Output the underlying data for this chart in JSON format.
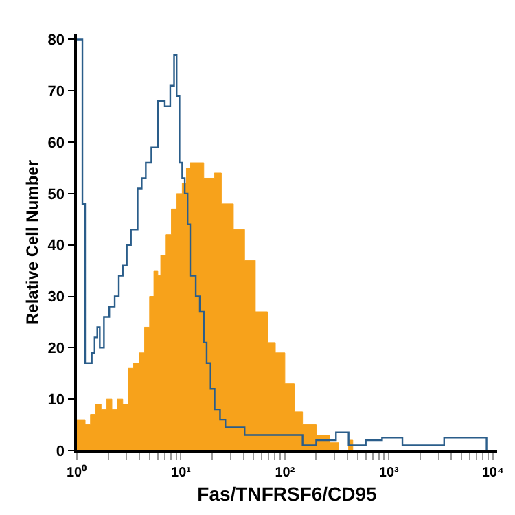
{
  "chart_data": {
    "type": "step",
    "xlabel": "Fas/TNFRSF6/CD95",
    "ylabel": "Relative Cell Number",
    "log": "x",
    "xlim": [
      1,
      11000
    ],
    "ylim": [
      0,
      81
    ],
    "xticks": [
      {
        "value": 1,
        "label": "10⁰"
      },
      {
        "value": 2,
        "label": null
      },
      {
        "value": 3,
        "label": null
      },
      {
        "value": 4,
        "label": null
      },
      {
        "value": 5,
        "label": null
      },
      {
        "value": 6,
        "label": null
      },
      {
        "value": 7,
        "label": null
      },
      {
        "value": 8,
        "label": null
      },
      {
        "value": 9,
        "label": null
      },
      {
        "value": 10,
        "label": "10¹"
      },
      {
        "value": 20,
        "label": null
      },
      {
        "value": 30,
        "label": null
      },
      {
        "value": 40,
        "label": null
      },
      {
        "value": 50,
        "label": null
      },
      {
        "value": 60,
        "label": null
      },
      {
        "value": 70,
        "label": null
      },
      {
        "value": 80,
        "label": null
      },
      {
        "value": 90,
        "label": null
      },
      {
        "value": 100,
        "label": "10²"
      },
      {
        "value": 200,
        "label": null
      },
      {
        "value": 300,
        "label": null
      },
      {
        "value": 400,
        "label": null
      },
      {
        "value": 500,
        "label": null
      },
      {
        "value": 600,
        "label": null
      },
      {
        "value": 700,
        "label": null
      },
      {
        "value": 800,
        "label": null
      },
      {
        "value": 900,
        "label": null
      },
      {
        "value": 1000,
        "label": "10³"
      },
      {
        "value": 2000,
        "label": null
      },
      {
        "value": 3000,
        "label": null
      },
      {
        "value": 4000,
        "label": null
      },
      {
        "value": 5000,
        "label": null
      },
      {
        "value": 6000,
        "label": null
      },
      {
        "value": 7000,
        "label": null
      },
      {
        "value": 8000,
        "label": null
      },
      {
        "value": 9000,
        "label": null
      },
      {
        "value": 10000,
        "label": "10⁴"
      }
    ],
    "yticks": [
      0,
      10,
      20,
      30,
      40,
      50,
      60,
      70,
      80
    ],
    "series": [
      {
        "type": "area",
        "color": "#f7a21b",
        "x": [
          1,
          1.2,
          1.35,
          1.52,
          1.71,
          1.93,
          2.17,
          2.45,
          2.76,
          3.11,
          3.51,
          3.96,
          4.46,
          5.0,
          5.5,
          6.0,
          6.4,
          7.2,
          8.1,
          9.1,
          10.3,
          11.3,
          12.3,
          16.6,
          21,
          24.5,
          32,
          41,
          52,
          68,
          81,
          100,
          123,
          148,
          200,
          270,
          330,
          410,
          450,
          490
        ],
        "values": [
          6,
          5,
          7,
          9,
          8,
          10,
          8,
          10,
          9,
          16,
          17,
          19,
          24,
          30,
          35,
          34,
          38,
          42,
          47,
          50,
          52,
          55,
          56,
          53,
          54,
          48,
          43,
          37,
          27,
          21,
          19,
          13,
          7.5,
          5,
          3,
          1.5,
          0,
          2,
          0,
          0
        ]
      },
      {
        "color": "#2a5d8a",
        "x": [
          1,
          1.13,
          1.2,
          1.39,
          1.48,
          1.57,
          1.66,
          1.82,
          2.05,
          2.31,
          2.53,
          2.76,
          3.02,
          3.31,
          3.84,
          4.2,
          4.6,
          5.2,
          6.0,
          7.0,
          7.9,
          8.6,
          9.1,
          9.7,
          10.3,
          10.9,
          11.6,
          12.3,
          13.9,
          15.2,
          16.6,
          17.7,
          19.3,
          21.1,
          23.8,
          26.8,
          30,
          41,
          68,
          148,
          200,
          310,
          410,
          600,
          860,
          1350,
          3400,
          4450,
          8700
        ],
        "values": [
          80,
          48,
          17,
          19,
          22,
          24,
          20,
          26,
          28,
          30,
          34,
          36,
          40,
          43,
          51,
          53,
          56,
          59,
          68,
          67,
          71,
          77,
          69,
          56,
          53,
          50,
          44,
          34,
          30,
          27,
          21,
          17,
          12,
          8,
          6,
          4.5,
          4.5,
          3,
          3,
          1,
          2,
          3.5,
          1,
          2,
          2.5,
          1,
          2.5,
          2.5,
          0
        ]
      }
    ]
  }
}
